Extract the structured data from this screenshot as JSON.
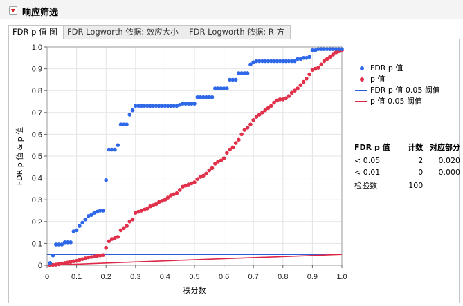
{
  "report": {
    "title": "响应筛选"
  },
  "tabs": [
    {
      "label": "FDR p 值 图",
      "active": true
    },
    {
      "label": "FDR Logworth 依据: 效应大小",
      "active": false
    },
    {
      "label": "FDR Logworth 依据: R 方",
      "active": false
    }
  ],
  "colors": {
    "fdr": "#2e68e8",
    "p": "#e0304a",
    "fdr_line": "#2e5fd8",
    "p_line": "#dc2846"
  },
  "legend": [
    {
      "label": "FDR p 值",
      "kind": "dot",
      "color": "#2e68e8"
    },
    {
      "label": "p 值",
      "kind": "dot",
      "color": "#e0304a"
    },
    {
      "label": "FDR p 值 0.05 阈值",
      "kind": "line",
      "color": "#2e5fd8"
    },
    {
      "label": "p 值 0.05 阈值",
      "kind": "line",
      "color": "#dc2846"
    }
  ],
  "summary": {
    "headers": [
      "FDR p 值",
      "计数",
      "对应部分"
    ],
    "rows": [
      [
        "< 0.05",
        "2",
        "0.020"
      ],
      [
        "< 0.01",
        "0",
        "0.000"
      ],
      [
        "检验数",
        "100",
        ""
      ]
    ]
  },
  "chart_data": {
    "type": "scatter",
    "xlabel": "秩分数",
    "ylabel": "FDR p 值 & p 值",
    "xlim": [
      0,
      1
    ],
    "ylim": [
      0,
      1
    ],
    "x_ticks": [
      "0",
      "0.1",
      "0.2",
      "0.3",
      "0.4",
      "0.5",
      "0.6",
      "0.7",
      "0.8",
      "0.9",
      "1.0"
    ],
    "y_ticks": [
      "0",
      "0.1",
      "0.2",
      "0.3",
      "0.4",
      "0.5",
      "0.6",
      "0.7",
      "0.8",
      "0.9",
      "1.0"
    ],
    "grid": true,
    "x": [
      0.01,
      0.02,
      0.03,
      0.04,
      0.05,
      0.06,
      0.07,
      0.08,
      0.09,
      0.1,
      0.11,
      0.12,
      0.13,
      0.14,
      0.15,
      0.16,
      0.17,
      0.18,
      0.19,
      0.2,
      0.21,
      0.22,
      0.23,
      0.24,
      0.25,
      0.26,
      0.27,
      0.28,
      0.29,
      0.3,
      0.31,
      0.32,
      0.33,
      0.34,
      0.35,
      0.36,
      0.37,
      0.38,
      0.39,
      0.4,
      0.41,
      0.42,
      0.43,
      0.44,
      0.45,
      0.46,
      0.47,
      0.48,
      0.49,
      0.5,
      0.51,
      0.52,
      0.53,
      0.54,
      0.55,
      0.56,
      0.57,
      0.58,
      0.59,
      0.6,
      0.61,
      0.62,
      0.63,
      0.64,
      0.65,
      0.66,
      0.67,
      0.68,
      0.69,
      0.7,
      0.71,
      0.72,
      0.73,
      0.74,
      0.75,
      0.76,
      0.77,
      0.78,
      0.79,
      0.8,
      0.81,
      0.82,
      0.83,
      0.84,
      0.85,
      0.86,
      0.87,
      0.88,
      0.89,
      0.9,
      0.91,
      0.92,
      0.93,
      0.94,
      0.95,
      0.96,
      0.97,
      0.98,
      0.99,
      1.0
    ],
    "series": [
      {
        "name": "FDR p 值",
        "values": [
          0.01,
          0.045,
          0.095,
          0.095,
          0.095,
          0.105,
          0.105,
          0.105,
          0.155,
          0.16,
          0.18,
          0.195,
          0.21,
          0.225,
          0.23,
          0.24,
          0.245,
          0.25,
          0.25,
          0.39,
          0.53,
          0.53,
          0.53,
          0.55,
          0.645,
          0.645,
          0.645,
          0.69,
          0.71,
          0.73,
          0.73,
          0.73,
          0.73,
          0.73,
          0.73,
          0.73,
          0.73,
          0.73,
          0.73,
          0.73,
          0.73,
          0.73,
          0.73,
          0.73,
          0.735,
          0.74,
          0.74,
          0.74,
          0.74,
          0.74,
          0.77,
          0.77,
          0.77,
          0.77,
          0.77,
          0.77,
          0.81,
          0.81,
          0.81,
          0.81,
          0.81,
          0.85,
          0.85,
          0.85,
          0.88,
          0.88,
          0.88,
          0.88,
          0.92,
          0.93,
          0.935,
          0.935,
          0.935,
          0.935,
          0.935,
          0.935,
          0.935,
          0.935,
          0.935,
          0.935,
          0.935,
          0.935,
          0.935,
          0.935,
          0.945,
          0.945,
          0.95,
          0.95,
          0.955,
          0.985,
          0.985,
          0.99,
          0.99,
          0.99,
          0.99,
          0.99,
          0.99,
          0.99,
          0.99,
          0.99
        ]
      },
      {
        "name": "p 值",
        "values": [
          0.001,
          0.002,
          0.003,
          0.005,
          0.008,
          0.01,
          0.012,
          0.015,
          0.018,
          0.02,
          0.024,
          0.028,
          0.032,
          0.036,
          0.038,
          0.041,
          0.043,
          0.045,
          0.047,
          0.08,
          0.11,
          0.12,
          0.125,
          0.13,
          0.16,
          0.17,
          0.18,
          0.2,
          0.21,
          0.24,
          0.245,
          0.25,
          0.255,
          0.26,
          0.27,
          0.275,
          0.28,
          0.29,
          0.295,
          0.3,
          0.31,
          0.32,
          0.325,
          0.33,
          0.345,
          0.36,
          0.365,
          0.37,
          0.375,
          0.38,
          0.395,
          0.405,
          0.41,
          0.42,
          0.435,
          0.445,
          0.465,
          0.475,
          0.48,
          0.49,
          0.515,
          0.53,
          0.54,
          0.56,
          0.575,
          0.6,
          0.62,
          0.63,
          0.645,
          0.665,
          0.68,
          0.69,
          0.7,
          0.71,
          0.72,
          0.73,
          0.745,
          0.755,
          0.76,
          0.76,
          0.765,
          0.775,
          0.79,
          0.8,
          0.81,
          0.825,
          0.84,
          0.855,
          0.875,
          0.895,
          0.9,
          0.905,
          0.92,
          0.935,
          0.945,
          0.955,
          0.965,
          0.975,
          0.98,
          0.985
        ]
      }
    ],
    "thresholds": [
      {
        "name": "FDR p 值 0.05 阈值",
        "type": "horizontal",
        "y": 0.05
      },
      {
        "name": "p 值 0.05 阈值",
        "type": "diagonal",
        "from": [
          0,
          0
        ],
        "to": [
          1,
          0.05
        ]
      }
    ]
  }
}
